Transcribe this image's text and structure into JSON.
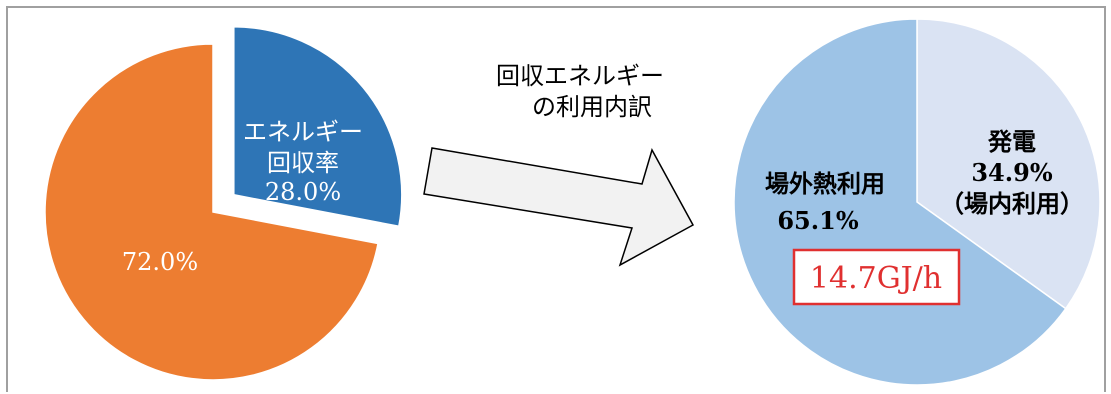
{
  "chart_data": [
    {
      "type": "pie",
      "categories": [
        "エネルギー回収率",
        ""
      ],
      "values": [
        28.0,
        72.0
      ],
      "unit": "%",
      "colors": [
        "#2e75b6",
        "#ed7d31"
      ],
      "exploded_slice": 0,
      "slice_labels": [
        [
          "エネルギー",
          "回収率",
          "28.0%"
        ],
        [
          "72.0%"
        ]
      ]
    },
    {
      "type": "pie",
      "title": [
        "回収エネルギー",
        "の利用内訳"
      ],
      "categories": [
        "発電（場内利用）",
        "場外熱利用"
      ],
      "values": [
        34.9,
        65.1
      ],
      "unit": "%",
      "colors": [
        "#dae3f3",
        "#9dc3e6"
      ],
      "slice_labels": [
        [
          "発電",
          "34.9%",
          "（場内利用）"
        ],
        [
          "場外熱利用",
          "65.1%"
        ]
      ],
      "annotation": "14.7GJ/h",
      "annotation_color": "#e03030"
    }
  ],
  "styles": {
    "text_light": "#ffffff",
    "text_dark": "#000000",
    "border": "#a0a0a0"
  }
}
